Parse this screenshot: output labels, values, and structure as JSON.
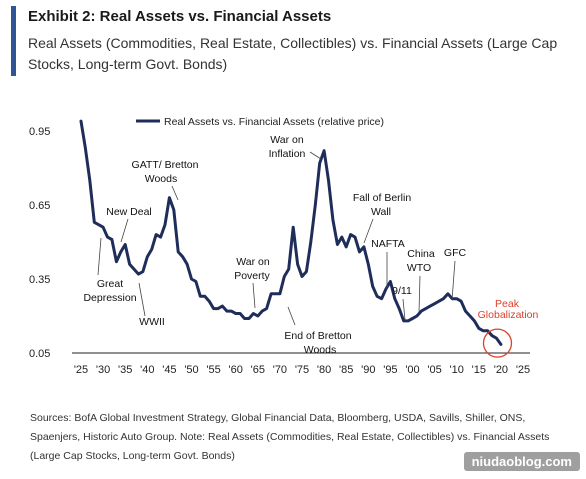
{
  "header": {
    "title": "Exhibit 2: Real Assets vs. Financial Assets",
    "subtitle": "Real Assets (Commodities, Real Estate, Collectibles) vs. Financial Assets (Large Cap Stocks, Long-term Govt. Bonds)"
  },
  "footer": {
    "source": "Sources: BofA Global Investment Strategy, Global Financial Data, Bloomberg, USDA, Savills, Shiller, ONS, Spaenjers, Historic Auto Group. Note: Real Assets (Commodities, Real Estate, Collectibles) vs. Financial Assets (Large Cap Stocks, Long-term Govt. Bonds)"
  },
  "watermark": "niudaoblog.com",
  "colors": {
    "accent": "#2f5597",
    "line": "#1f2d5a",
    "highlight": "#d9402b"
  },
  "chart_data": {
    "type": "line",
    "title": "",
    "xlabel": "",
    "ylabel": "",
    "xlim": [
      1924,
      2026
    ],
    "ylim": [
      0.05,
      1.0
    ],
    "x_ticks": [
      1925,
      1930,
      1935,
      1940,
      1945,
      1950,
      1955,
      1960,
      1965,
      1970,
      1975,
      1980,
      1985,
      1990,
      1995,
      2000,
      2005,
      2010,
      2015,
      2020,
      2025
    ],
    "x_tick_labels": [
      "'25",
      "'30",
      "'35",
      "'40",
      "'45",
      "'50",
      "'55",
      "'60",
      "'65",
      "'70",
      "'75",
      "'80",
      "'85",
      "'90",
      "'95",
      "'00",
      "'05",
      "'10",
      "'15",
      "'20",
      "'25"
    ],
    "y_ticks": [
      0.05,
      0.35,
      0.65,
      0.95
    ],
    "y_tick_labels": [
      "0.05",
      "0.35",
      "0.65",
      "0.95"
    ],
    "grid": false,
    "legend": {
      "position": "top",
      "entries": [
        "Real Assets vs. Financial Assets (relative price)"
      ]
    },
    "series": [
      {
        "name": "Real Assets vs. Financial Assets (relative price)",
        "x": [
          1925,
          1926,
          1927,
          1928,
          1929,
          1930,
          1931,
          1932,
          1933,
          1934,
          1935,
          1936,
          1937,
          1938,
          1939,
          1940,
          1941,
          1942,
          1943,
          1944,
          1945,
          1946,
          1947,
          1948,
          1949,
          1950,
          1951,
          1952,
          1953,
          1954,
          1955,
          1956,
          1957,
          1958,
          1959,
          1960,
          1961,
          1962,
          1963,
          1964,
          1965,
          1966,
          1967,
          1968,
          1969,
          1970,
          1971,
          1972,
          1973,
          1974,
          1975,
          1976,
          1977,
          1978,
          1979,
          1980,
          1981,
          1982,
          1983,
          1984,
          1985,
          1986,
          1987,
          1988,
          1989,
          1990,
          1991,
          1992,
          1993,
          1994,
          1995,
          1996,
          1997,
          1998,
          1999,
          2000,
          2001,
          2002,
          2003,
          2004,
          2005,
          2006,
          2007,
          2008,
          2009,
          2010,
          2011,
          2012,
          2013,
          2014,
          2015,
          2016,
          2017,
          2018,
          2019,
          2020
        ],
        "y": [
          0.99,
          0.88,
          0.75,
          0.58,
          0.57,
          0.56,
          0.52,
          0.51,
          0.42,
          0.46,
          0.49,
          0.41,
          0.39,
          0.37,
          0.38,
          0.44,
          0.47,
          0.53,
          0.52,
          0.57,
          0.68,
          0.63,
          0.46,
          0.44,
          0.41,
          0.35,
          0.34,
          0.28,
          0.28,
          0.26,
          0.23,
          0.23,
          0.24,
          0.22,
          0.22,
          0.21,
          0.21,
          0.19,
          0.19,
          0.21,
          0.2,
          0.22,
          0.23,
          0.29,
          0.29,
          0.29,
          0.36,
          0.39,
          0.56,
          0.41,
          0.36,
          0.38,
          0.5,
          0.65,
          0.82,
          0.87,
          0.75,
          0.59,
          0.49,
          0.52,
          0.48,
          0.53,
          0.52,
          0.46,
          0.48,
          0.41,
          0.32,
          0.28,
          0.27,
          0.31,
          0.34,
          0.27,
          0.23,
          0.18,
          0.18,
          0.19,
          0.2,
          0.22,
          0.23,
          0.24,
          0.25,
          0.26,
          0.27,
          0.29,
          0.27,
          0.27,
          0.26,
          0.22,
          0.2,
          0.18,
          0.15,
          0.14,
          0.14,
          0.12,
          0.11,
          0.085
        ]
      }
    ],
    "annotations": [
      {
        "text": "Great Depression",
        "year": 1933,
        "value": 0.42
      },
      {
        "text": "New Deal",
        "year": 1934,
        "value": 0.52
      },
      {
        "text": "WWII",
        "year": 1939,
        "value": 0.33
      },
      {
        "text": "GATT/ Bretton Woods",
        "year": 1945,
        "value": 0.68
      },
      {
        "text": "War on Poverty",
        "year": 1964,
        "value": 0.21
      },
      {
        "text": "End of Bretton Woods",
        "year": 1971,
        "value": 0.3
      },
      {
        "text": "War on Inflation",
        "year": 1980,
        "value": 0.87
      },
      {
        "text": "Fall of Berlin Wall",
        "year": 1989,
        "value": 0.48
      },
      {
        "text": "NAFTA",
        "year": 1994,
        "value": 0.34
      },
      {
        "text": "9/11",
        "year": 2001,
        "value": 0.2
      },
      {
        "text": "China WTO",
        "year": 2001,
        "value": 0.21
      },
      {
        "text": "GFC",
        "year": 2008,
        "value": 0.29
      },
      {
        "text": "Peak Globalization",
        "year": 2019,
        "value": 0.09
      }
    ]
  }
}
